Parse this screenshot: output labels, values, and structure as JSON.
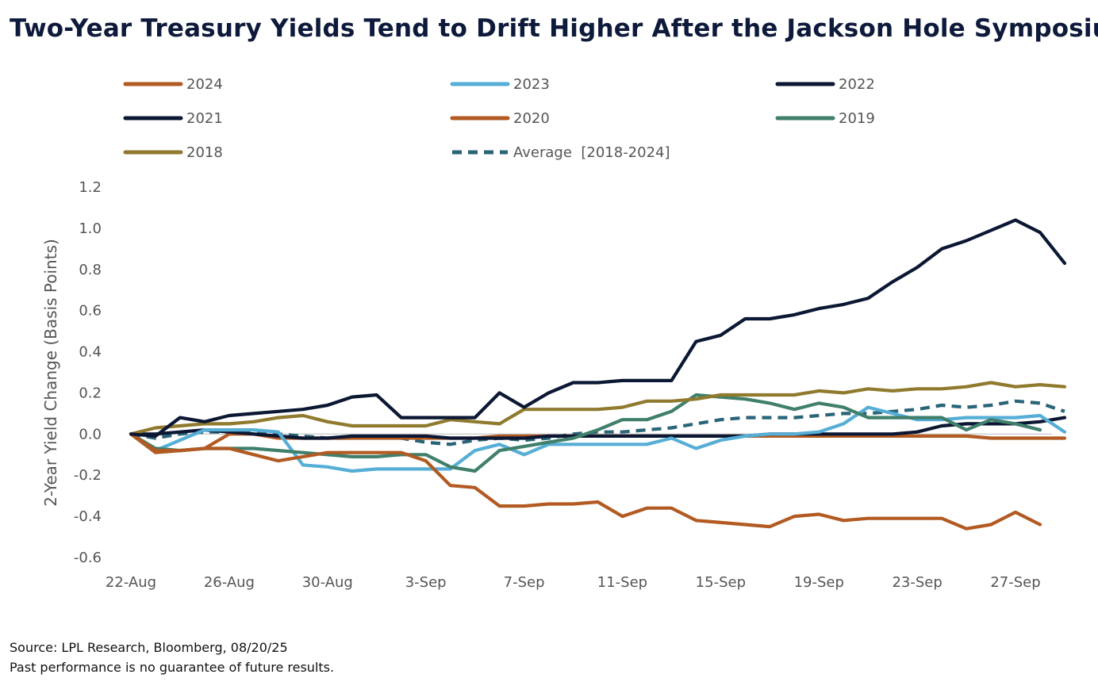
{
  "title": "Two-Year Treasury Yields Tend to Drift Higher After the Jackson Hole Symposium",
  "footer": {
    "source": "Source: LPL Research, Bloomberg, 08/20/25",
    "disclaimer": "Past performance is no guarantee of future results."
  },
  "colors": {
    "2024": "#b25a22",
    "2023": "#56aed6",
    "2022": "#0b1733",
    "2021": "#0b1733",
    "2020": "#b25a22",
    "2019": "#3f7f6b",
    "2018": "#8f7a2e",
    "average": "#2a6478"
  },
  "chart_data": {
    "type": "line",
    "title": "Two-Year Treasury Yields Tend to Drift Higher After the Jackson Hole Symposium",
    "xlabel": "",
    "ylabel": "2-Year Yield Change (Basis Points)",
    "ylim": [
      -0.6,
      1.2
    ],
    "yticks": [
      "1.2",
      "1.0",
      "0.8",
      "0.6",
      "0.4",
      "0.2",
      "0.0",
      "-0.2",
      "-0.4",
      "-0.6"
    ],
    "ytick_values": [
      1.2,
      1.0,
      0.8,
      0.6,
      0.4,
      0.2,
      0.0,
      -0.2,
      -0.4,
      -0.6
    ],
    "xticks": [
      "22-Aug",
      "26-Aug",
      "30-Aug",
      "3-Sep",
      "7-Sep",
      "11-Sep",
      "15-Sep",
      "19-Sep",
      "23-Sep",
      "27-Sep"
    ],
    "xtick_positions": [
      0,
      4,
      8,
      12,
      16,
      20,
      24,
      28,
      32,
      36
    ],
    "x_range": [
      0,
      37
    ],
    "legend_position": "top",
    "grid": false,
    "series": [
      {
        "name": "2024",
        "key": "2024",
        "dashed": false,
        "values": [
          0,
          -0.08,
          -0.08,
          -0.07,
          -0.07,
          -0.1,
          -0.13,
          -0.11,
          -0.09,
          -0.09,
          -0.09,
          -0.09,
          -0.13,
          -0.25,
          -0.26,
          -0.35,
          -0.35,
          -0.34,
          -0.34,
          -0.33,
          -0.4,
          -0.36,
          -0.36,
          -0.42,
          -0.43,
          -0.44,
          -0.45,
          -0.4,
          -0.39,
          -0.42,
          -0.41,
          -0.41,
          -0.41,
          -0.41,
          -0.46,
          -0.44,
          -0.38,
          -0.44
        ]
      },
      {
        "name": "2023",
        "key": "2023",
        "dashed": false,
        "values": [
          0,
          -0.08,
          -0.03,
          0.02,
          0.02,
          0.02,
          0.01,
          -0.15,
          -0.16,
          -0.18,
          -0.17,
          -0.17,
          -0.17,
          -0.17,
          -0.08,
          -0.05,
          -0.1,
          -0.05,
          -0.05,
          -0.05,
          -0.05,
          -0.05,
          -0.02,
          -0.07,
          -0.03,
          -0.01,
          0.0,
          0.0,
          0.01,
          0.05,
          0.13,
          0.1,
          0.07,
          0.07,
          0.08,
          0.08,
          0.08,
          0.09,
          0.01
        ]
      },
      {
        "name": "2022",
        "key": "2022",
        "dashed": false,
        "values": [
          0,
          0.0,
          0.01,
          0.02,
          0.01,
          0.0,
          -0.01,
          -0.02,
          -0.02,
          -0.01,
          -0.01,
          -0.01,
          -0.01,
          -0.02,
          -0.02,
          -0.02,
          -0.02,
          -0.01,
          -0.01,
          -0.01,
          -0.01,
          -0.01,
          -0.01,
          -0.01,
          -0.01,
          -0.01,
          0.0,
          0.0,
          0.0,
          0.0,
          0.0,
          0.0,
          0.01,
          0.04,
          0.05,
          0.05,
          0.05,
          0.06,
          0.08
        ]
      },
      {
        "name": "2021",
        "key": "2021",
        "dashed": false,
        "values": [
          0,
          -0.01,
          0.08,
          0.06,
          0.09,
          0.1,
          0.11,
          0.12,
          0.14,
          0.18,
          0.19,
          0.08,
          0.08,
          0.08,
          0.08,
          0.2,
          0.13,
          0.2,
          0.25,
          0.25,
          0.26,
          0.26,
          0.26,
          0.45,
          0.48,
          0.56,
          0.56,
          0.58,
          0.61,
          0.63,
          0.66,
          0.74,
          0.81,
          0.9,
          0.94,
          0.99,
          1.04,
          0.98,
          0.83
        ]
      },
      {
        "name": "2020",
        "key": "2020",
        "dashed": false,
        "values": [
          0,
          -0.09,
          -0.08,
          -0.07,
          0.0,
          0.0,
          -0.02,
          -0.02,
          -0.02,
          -0.02,
          -0.02,
          -0.02,
          -0.02,
          -0.02,
          -0.02,
          -0.01,
          -0.01,
          -0.01,
          -0.01,
          -0.01,
          -0.01,
          -0.01,
          -0.01,
          -0.01,
          -0.01,
          -0.01,
          -0.01,
          -0.01,
          -0.01,
          -0.01,
          -0.01,
          -0.01,
          -0.01,
          -0.01,
          -0.01,
          -0.02,
          -0.02,
          -0.02,
          -0.02
        ]
      },
      {
        "name": "2019",
        "key": "2019",
        "dashed": false,
        "values": [
          0,
          -0.07,
          -0.08,
          -0.07,
          -0.07,
          -0.07,
          -0.08,
          -0.09,
          -0.1,
          -0.11,
          -0.11,
          -0.1,
          -0.1,
          -0.16,
          -0.18,
          -0.08,
          -0.06,
          -0.04,
          -0.02,
          0.02,
          0.07,
          0.07,
          0.11,
          0.19,
          0.18,
          0.17,
          0.15,
          0.12,
          0.15,
          0.13,
          0.08,
          0.08,
          0.08,
          0.08,
          0.02,
          0.07,
          0.05,
          0.02
        ]
      },
      {
        "name": "2018",
        "key": "2018",
        "dashed": false,
        "values": [
          0,
          0.03,
          0.04,
          0.05,
          0.05,
          0.06,
          0.08,
          0.09,
          0.06,
          0.04,
          0.04,
          0.04,
          0.04,
          0.07,
          0.06,
          0.05,
          0.12,
          0.12,
          0.12,
          0.12,
          0.13,
          0.16,
          0.16,
          0.17,
          0.19,
          0.19,
          0.19,
          0.19,
          0.21,
          0.2,
          0.22,
          0.21,
          0.22,
          0.22,
          0.23,
          0.25,
          0.23,
          0.24,
          0.23
        ]
      },
      {
        "name": "Average  [2018-2024]",
        "key": "average",
        "dashed": true,
        "values": [
          0,
          -0.02,
          0.0,
          0.01,
          0.01,
          0.01,
          0.0,
          -0.01,
          -0.02,
          -0.02,
          -0.01,
          -0.02,
          -0.04,
          -0.05,
          -0.03,
          -0.02,
          -0.03,
          -0.02,
          0.0,
          0.01,
          0.01,
          0.02,
          0.03,
          0.05,
          0.07,
          0.08,
          0.08,
          0.08,
          0.09,
          0.1,
          0.1,
          0.11,
          0.12,
          0.14,
          0.13,
          0.14,
          0.16,
          0.15,
          0.11
        ]
      }
    ]
  }
}
